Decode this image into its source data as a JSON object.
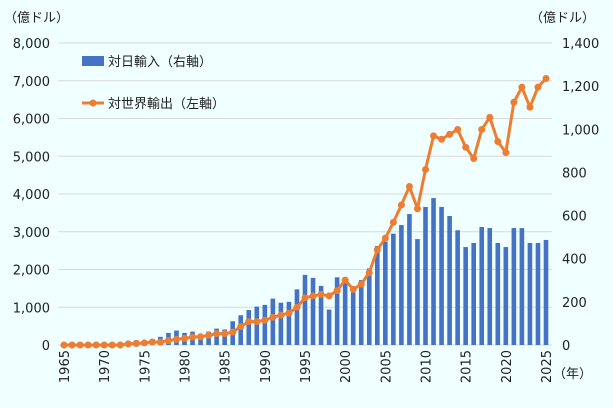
{
  "chart_data": {
    "type": "bar+line",
    "left_axis_unit": "（億ドル）",
    "right_axis_unit": "（億ドル）",
    "x_unit": "（年）",
    "left_ylim": [
      0,
      8000
    ],
    "right_ylim": [
      0,
      1400
    ],
    "left_ticks": [
      "0",
      "1,000",
      "2,000",
      "3,000",
      "4,000",
      "5,000",
      "6,000",
      "7,000",
      "8,000"
    ],
    "right_ticks": [
      "0",
      "200",
      "400",
      "600",
      "800",
      "1,000",
      "1,200",
      "1,400"
    ],
    "x_ticks": [
      "1965",
      "1970",
      "1975",
      "1980",
      "1985",
      "1990",
      "1995",
      "2000",
      "2005",
      "2010",
      "2015",
      "2020",
      "2025"
    ],
    "grid": true,
    "legend_position": "top-left",
    "colors": {
      "bar": "#4472C4",
      "line": "#ED7D31",
      "grid": "#D9D9D9",
      "background": "#F0FFFF"
    },
    "years": [
      1965,
      1966,
      1967,
      1968,
      1969,
      1970,
      1971,
      1972,
      1973,
      1974,
      1975,
      1976,
      1977,
      1978,
      1979,
      1980,
      1981,
      1982,
      1983,
      1984,
      1985,
      1986,
      1987,
      1988,
      1989,
      1990,
      1991,
      1992,
      1993,
      1994,
      1995,
      1996,
      1997,
      1998,
      1999,
      2000,
      2001,
      2002,
      2003,
      2004,
      2005,
      2006,
      2007,
      2008,
      2009,
      2010,
      2011,
      2012,
      2013,
      2014,
      2015,
      2016,
      2017,
      2018,
      2019,
      2020,
      2021,
      2022,
      2023,
      2024,
      2025
    ],
    "series": [
      {
        "name": "対日輸入（右軸）",
        "type": "bar",
        "axis": "right",
        "values": [
          2,
          2,
          3,
          4,
          5,
          6,
          8,
          10,
          15,
          22,
          21,
          27,
          38,
          56,
          67,
          56,
          62,
          40,
          62,
          76,
          72,
          110,
          138,
          162,
          178,
          186,
          215,
          196,
          200,
          258,
          325,
          311,
          274,
          164,
          314,
          314,
          244,
          301,
          355,
          459,
          479,
          516,
          556,
          607,
          491,
          640,
          681,
          640,
          598,
          532,
          454,
          473,
          547,
          542,
          473,
          454,
          542,
          542,
          473,
          473,
          487
        ]
      },
      {
        "name": "対世界輸出（左軸）",
        "type": "line",
        "axis": "left",
        "values": [
          0,
          0,
          0,
          0,
          0,
          0,
          0,
          0,
          30,
          40,
          55,
          80,
          75,
          120,
          150,
          175,
          210,
          220,
          255,
          300,
          300,
          340,
          490,
          620,
          620,
          655,
          735,
          790,
          845,
          1000,
          1250,
          1300,
          1340,
          1300,
          1440,
          1720,
          1475,
          1610,
          1920,
          2520,
          2830,
          3250,
          3710,
          4200,
          3610,
          4650,
          5540,
          5450,
          5580,
          5710,
          5240,
          4940,
          5710,
          6030,
          5390,
          5100,
          6430,
          6830,
          6300,
          6830,
          7060
        ]
      }
    ]
  }
}
